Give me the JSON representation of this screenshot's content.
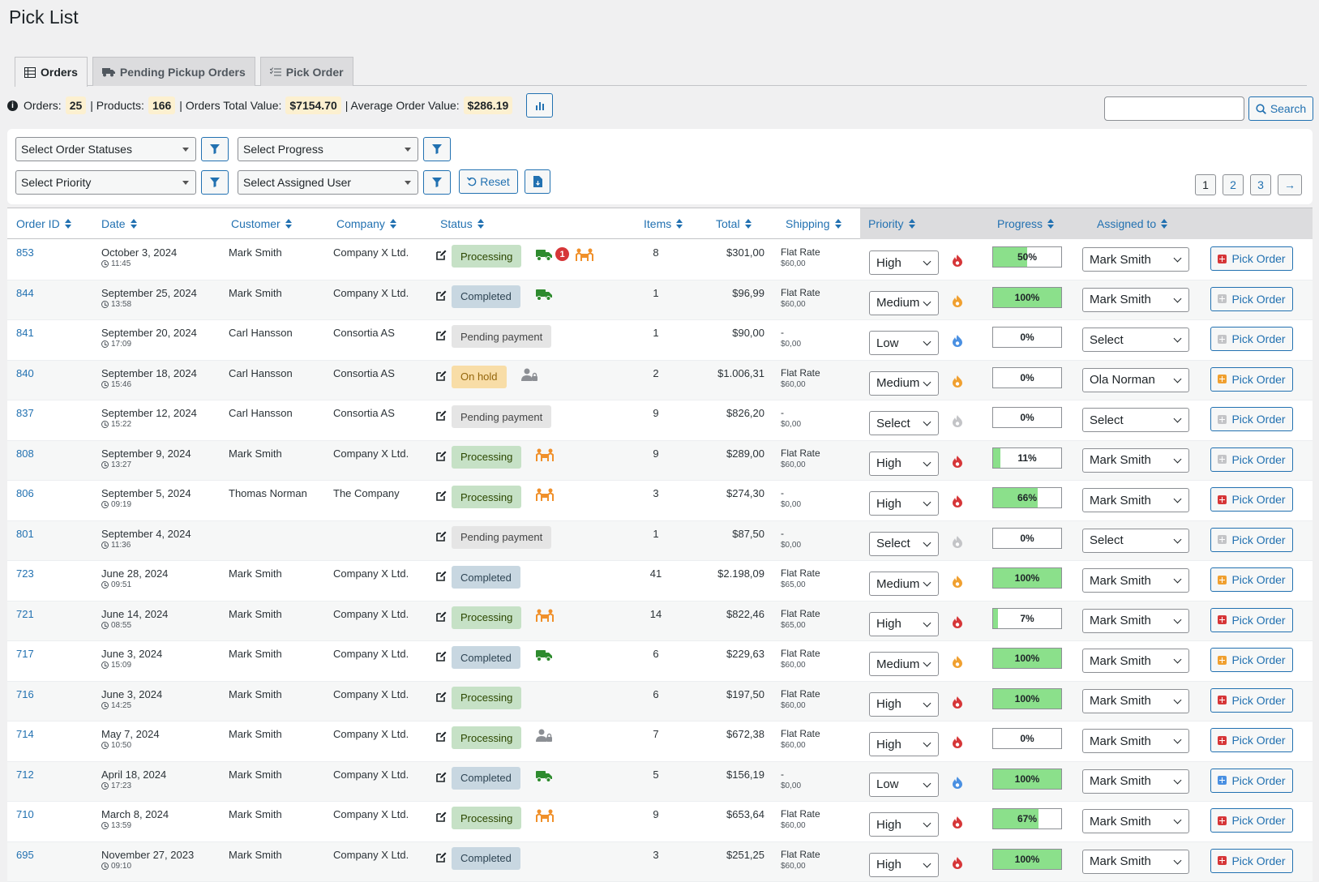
{
  "page": {
    "title": "Pick List"
  },
  "tabs": [
    {
      "label": "Orders",
      "icon": "table-icon",
      "active": true
    },
    {
      "label": "Pending Pickup Orders",
      "icon": "truck-icon",
      "active": false
    },
    {
      "label": "Pick Order",
      "icon": "checklist-icon",
      "active": false
    }
  ],
  "stats": {
    "orders_label": "Orders:",
    "orders": "25",
    "products_label": "| Products:",
    "products": "166",
    "total_label": "| Orders Total Value:",
    "total": "$7154.70",
    "avg_label": "| Average Order Value:",
    "avg": "$286.19"
  },
  "search": {
    "placeholder": "",
    "button_label": "Search"
  },
  "filters": {
    "order_statuses": "Select Order Statuses",
    "progress": "Select Progress",
    "priority": "Select Priority",
    "assigned_user": "Select Assigned User",
    "reset_label": "Reset"
  },
  "pagination": {
    "pages": [
      "1",
      "2",
      "3"
    ],
    "next": "→"
  },
  "columns": {
    "order_id": "Order ID",
    "date": "Date",
    "customer": "Customer",
    "company": "Company",
    "status": "Status",
    "items": "Items",
    "total": "Total",
    "shipping": "Shipping",
    "priority": "Priority",
    "progress": "Progress",
    "assigned": "Assigned to"
  },
  "pick_label": "Pick Order",
  "colors": {
    "accent": "#2271b1",
    "high": "#d63638",
    "medium": "#f0a030",
    "low": "#4a90e2",
    "none": "#c3c4c7",
    "progress": "#8be08b"
  },
  "rows": [
    {
      "id": "853",
      "date": "October 3, 2024",
      "time": "11:45",
      "customer": "Mark Smith",
      "company": "Company X Ltd.",
      "status": "Processing",
      "status_class": "st-processing",
      "icons": [
        "truck",
        "notif",
        "people"
      ],
      "notif": "1",
      "items": "8",
      "total": "$301,00",
      "ship": "Flat Rate",
      "ship_cost": "$60,00",
      "priority": "High",
      "prio_color": "high",
      "progress": 0.5,
      "progress_label": "50%",
      "assigned": "Mark Smith",
      "pick_color": "high"
    },
    {
      "id": "844",
      "date": "September 25, 2024",
      "time": "13:58",
      "customer": "Mark Smith",
      "company": "Company X Ltd.",
      "status": "Completed",
      "status_class": "st-completed",
      "icons": [
        "truck"
      ],
      "items": "1",
      "total": "$96,99",
      "ship": "Flat Rate",
      "ship_cost": "$60,00",
      "priority": "Medium",
      "prio_color": "medium",
      "progress": 1.0,
      "progress_label": "100%",
      "assigned": "Mark Smith",
      "pick_color": "none"
    },
    {
      "id": "841",
      "date": "September 20, 2024",
      "time": "17:09",
      "customer": "Carl Hansson",
      "company": "Consortia AS",
      "status": "Pending payment",
      "status_class": "st-pending",
      "icons": [],
      "items": "1",
      "total": "$90,00",
      "ship": "-",
      "ship_cost": "$0,00",
      "priority": "Low",
      "prio_color": "low",
      "progress": 0,
      "progress_label": "0%",
      "assigned": "Select",
      "pick_color": "none"
    },
    {
      "id": "840",
      "date": "September 18, 2024",
      "time": "15:46",
      "customer": "Carl Hansson",
      "company": "Consortia AS",
      "status": "On hold",
      "status_class": "st-onhold",
      "icons": [
        "user-lock"
      ],
      "items": "2",
      "total": "$1.006,31",
      "ship": "Flat Rate",
      "ship_cost": "$60,00",
      "priority": "Medium",
      "prio_color": "medium",
      "progress": 0,
      "progress_label": "0%",
      "assigned": "Ola Norman",
      "pick_color": "medium"
    },
    {
      "id": "837",
      "date": "September 12, 2024",
      "time": "15:22",
      "customer": "Carl Hansson",
      "company": "Consortia AS",
      "status": "Pending payment",
      "status_class": "st-pending",
      "icons": [],
      "items": "9",
      "total": "$826,20",
      "ship": "-",
      "ship_cost": "$0,00",
      "priority": "Select",
      "prio_color": "none",
      "progress": 0,
      "progress_label": "0%",
      "assigned": "Select",
      "pick_color": "none"
    },
    {
      "id": "808",
      "date": "September 9, 2024",
      "time": "13:27",
      "customer": "Mark Smith",
      "company": "Company X Ltd.",
      "status": "Processing",
      "status_class": "st-processing",
      "icons": [
        "people"
      ],
      "items": "9",
      "total": "$289,00",
      "ship": "Flat Rate",
      "ship_cost": "$60,00",
      "priority": "High",
      "prio_color": "high",
      "progress": 0.11,
      "progress_label": "11%",
      "assigned": "Mark Smith",
      "pick_color": "none"
    },
    {
      "id": "806",
      "date": "September 5, 2024",
      "time": "09:19",
      "customer": "Thomas Norman",
      "company": "The Company",
      "status": "Processing",
      "status_class": "st-processing",
      "icons": [
        "people"
      ],
      "items": "3",
      "total": "$274,30",
      "ship": "-",
      "ship_cost": "$0,00",
      "priority": "High",
      "prio_color": "high",
      "progress": 0.66,
      "progress_label": "66%",
      "assigned": "Mark Smith",
      "pick_color": "high"
    },
    {
      "id": "801",
      "date": "September 4, 2024",
      "time": "11:36",
      "customer": "",
      "company": "",
      "status": "Pending payment",
      "status_class": "st-pending",
      "icons": [],
      "items": "1",
      "total": "$87,50",
      "ship": "-",
      "ship_cost": "$0,00",
      "priority": "Select",
      "prio_color": "none",
      "progress": 0,
      "progress_label": "0%",
      "assigned": "Select",
      "pick_color": "none"
    },
    {
      "id": "723",
      "date": "June 28, 2024",
      "time": "09:51",
      "customer": "Mark Smith",
      "company": "Company X Ltd.",
      "status": "Completed",
      "status_class": "st-completed",
      "icons": [],
      "items": "41",
      "total": "$2.198,09",
      "ship": "Flat Rate",
      "ship_cost": "$65,00",
      "priority": "Medium",
      "prio_color": "medium",
      "progress": 1.0,
      "progress_label": "100%",
      "assigned": "Mark Smith",
      "pick_color": "medium"
    },
    {
      "id": "721",
      "date": "June 14, 2024",
      "time": "08:55",
      "customer": "Mark Smith",
      "company": "Company X Ltd.",
      "status": "Processing",
      "status_class": "st-processing",
      "icons": [
        "people"
      ],
      "items": "14",
      "total": "$822,46",
      "ship": "Flat Rate",
      "ship_cost": "$65,00",
      "priority": "High",
      "prio_color": "high",
      "progress": 0.07,
      "progress_label": "7%",
      "assigned": "Mark Smith",
      "pick_color": "high"
    },
    {
      "id": "717",
      "date": "June 3, 2024",
      "time": "15:09",
      "customer": "Mark Smith",
      "company": "Company X Ltd.",
      "status": "Completed",
      "status_class": "st-completed",
      "icons": [
        "truck"
      ],
      "items": "6",
      "total": "$229,63",
      "ship": "Flat Rate",
      "ship_cost": "$60,00",
      "priority": "Medium",
      "prio_color": "medium",
      "progress": 1.0,
      "progress_label": "100%",
      "assigned": "Mark Smith",
      "pick_color": "medium"
    },
    {
      "id": "716",
      "date": "June 3, 2024",
      "time": "14:25",
      "customer": "Mark Smith",
      "company": "Company X Ltd.",
      "status": "Processing",
      "status_class": "st-processing",
      "icons": [],
      "items": "6",
      "total": "$197,50",
      "ship": "Flat Rate",
      "ship_cost": "$60,00",
      "priority": "High",
      "prio_color": "high",
      "progress": 1.0,
      "progress_label": "100%",
      "assigned": "Mark Smith",
      "pick_color": "high"
    },
    {
      "id": "714",
      "date": "May 7, 2024",
      "time": "10:50",
      "customer": "Mark Smith",
      "company": "Company X Ltd.",
      "status": "Processing",
      "status_class": "st-processing",
      "icons": [
        "user-lock"
      ],
      "items": "7",
      "total": "$672,38",
      "ship": "Flat Rate",
      "ship_cost": "$60,00",
      "priority": "High",
      "prio_color": "high",
      "progress": 0,
      "progress_label": "0%",
      "assigned": "Mark Smith",
      "pick_color": "high"
    },
    {
      "id": "712",
      "date": "April 18, 2024",
      "time": "17:23",
      "customer": "Mark Smith",
      "company": "Company X Ltd.",
      "status": "Completed",
      "status_class": "st-completed",
      "icons": [
        "truck"
      ],
      "items": "5",
      "total": "$156,19",
      "ship": "-",
      "ship_cost": "$0,00",
      "priority": "Low",
      "prio_color": "low",
      "progress": 1.0,
      "progress_label": "100%",
      "assigned": "Mark Smith",
      "pick_color": "low"
    },
    {
      "id": "710",
      "date": "March 8, 2024",
      "time": "13:59",
      "customer": "Mark Smith",
      "company": "Company X Ltd.",
      "status": "Processing",
      "status_class": "st-processing",
      "icons": [
        "people"
      ],
      "items": "9",
      "total": "$653,64",
      "ship": "Flat Rate",
      "ship_cost": "$60,00",
      "priority": "High",
      "prio_color": "high",
      "progress": 0.67,
      "progress_label": "67%",
      "assigned": "Mark Smith",
      "pick_color": "high"
    },
    {
      "id": "695",
      "date": "November 27, 2023",
      "time": "09:10",
      "customer": "Mark Smith",
      "company": "Company X Ltd.",
      "status": "Completed",
      "status_class": "st-completed",
      "icons": [],
      "items": "3",
      "total": "$251,25",
      "ship": "Flat Rate",
      "ship_cost": "$60,00",
      "priority": "High",
      "prio_color": "high",
      "progress": 1.0,
      "progress_label": "100%",
      "assigned": "Mark Smith",
      "pick_color": "high"
    }
  ]
}
